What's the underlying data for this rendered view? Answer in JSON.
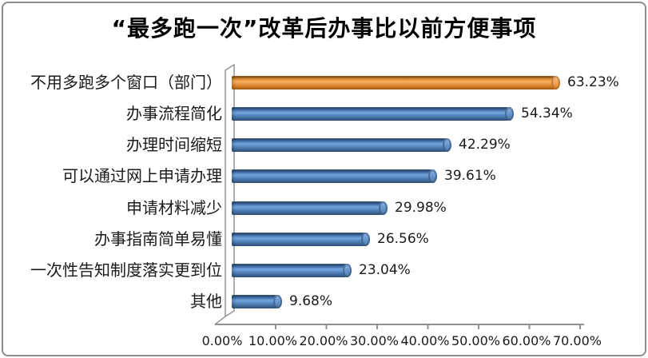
{
  "chart_data": {
    "type": "bar",
    "orientation": "horizontal",
    "style": "3d-cylinder",
    "title": "“最多跑一次”改革后办事比以前方便事项",
    "categories": [
      "不用多跑多个窗口（部门）",
      "办事流程简化",
      "办理时间缩短",
      "可以通过网上申请办理",
      "申请材料减少",
      "办事指南简单易懂",
      "一次性告知制度落实更到位",
      "其他"
    ],
    "values": [
      63.23,
      54.34,
      42.29,
      39.61,
      29.98,
      26.56,
      23.04,
      9.68
    ],
    "value_labels": [
      "63.23%",
      "54.34%",
      "42.29%",
      "39.61%",
      "29.98%",
      "26.56%",
      "23.04%",
      "9.68%"
    ],
    "bar_colors": [
      "#E8912D",
      "#4A7EBB",
      "#4A7EBB",
      "#4A7EBB",
      "#4A7EBB",
      "#4A7EBB",
      "#4A7EBB",
      "#4A7EBB"
    ],
    "x_ticks": [
      "0.00%",
      "10.00%",
      "20.00%",
      "30.00%",
      "40.00%",
      "50.00%",
      "60.00%",
      "70.00%"
    ],
    "xlim": [
      0,
      70
    ],
    "xlabel": "",
    "ylabel": "",
    "grid": false,
    "legend": "none",
    "data_labels": "outside-end"
  },
  "colors": {
    "orange": "#E8912D",
    "blue": "#4A7EBB",
    "axis_line": "#8f8f8f",
    "frame_border": "#8c8c8c",
    "text": "#1A1A1A",
    "background": "#FFFFFF"
  }
}
